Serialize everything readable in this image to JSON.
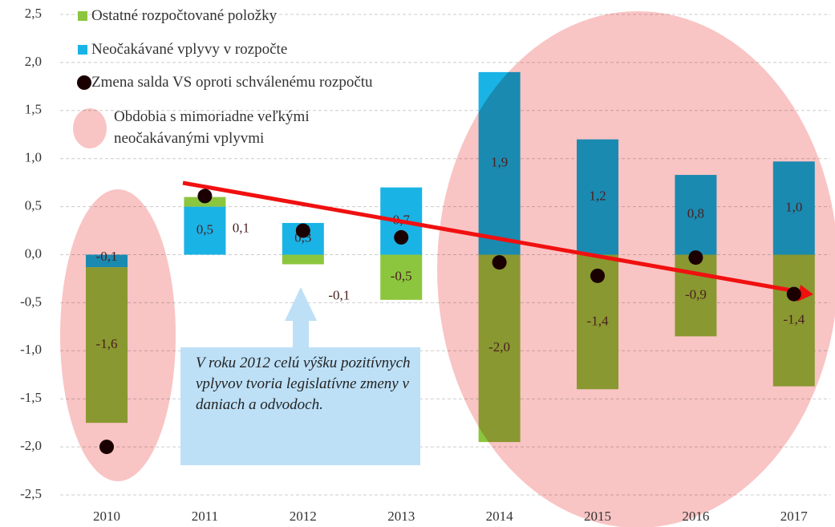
{
  "chart_data": {
    "type": "bar",
    "stacked": true,
    "categories": [
      "2010",
      "2011",
      "2012",
      "2013",
      "2014",
      "2015",
      "2016",
      "2017"
    ],
    "series": [
      {
        "name": "Ostatné rozpočtované položky",
        "color": "#8cc63e",
        "values": [
          -1.62,
          0.1,
          -0.1,
          -0.47,
          -1.95,
          -1.4,
          -0.85,
          -1.37
        ],
        "value_labels": [
          "-1,6",
          "0,1",
          "-0,1",
          "-0,5",
          "-2,0",
          "-1,4",
          "-0,9",
          "-1,4"
        ]
      },
      {
        "name": "Neočakávané vplyvy v rozpočte",
        "color": "#1ab3e6",
        "values": [
          -0.13,
          0.5,
          0.33,
          0.7,
          1.9,
          1.2,
          0.83,
          0.97
        ],
        "value_labels": [
          "-0,1",
          "0,5",
          "0,3",
          "0,7",
          "1,9",
          "1,2",
          "0,8",
          "1,0"
        ]
      },
      {
        "name": "Zmena salda VS oproti schválenému rozpočtu",
        "type": "scatter",
        "color": "#1a0000",
        "values": [
          -2.0,
          0.61,
          0.25,
          0.18,
          -0.08,
          -0.22,
          -0.03,
          -0.41
        ]
      }
    ],
    "highlight_label": "Obdobia s mimoriadne veľkými neočakávanými vplyvmi",
    "annotation": "V roku 2012 celú výšku pozitívnych vplyvov tvoria legislatívne zmeny v daniach a odvodoch.",
    "ylim": [
      -2.5,
      2.5
    ],
    "yticks": [
      {
        "value": -2.5,
        "label": "-2,5"
      },
      {
        "value": -2.0,
        "label": "-2,0"
      },
      {
        "value": -1.5,
        "label": "-1,5"
      },
      {
        "value": -1.0,
        "label": "-1,0"
      },
      {
        "value": -0.5,
        "label": "-0,5"
      },
      {
        "value": 0,
        "label": "0,0"
      },
      {
        "value": 0.5,
        "label": "0,5"
      },
      {
        "value": 1.0,
        "label": "1,0"
      },
      {
        "value": 1.5,
        "label": "1,5"
      },
      {
        "value": 2.0,
        "label": "2,0"
      },
      {
        "value": 2.5,
        "label": "2,5"
      }
    ],
    "grid": true
  }
}
